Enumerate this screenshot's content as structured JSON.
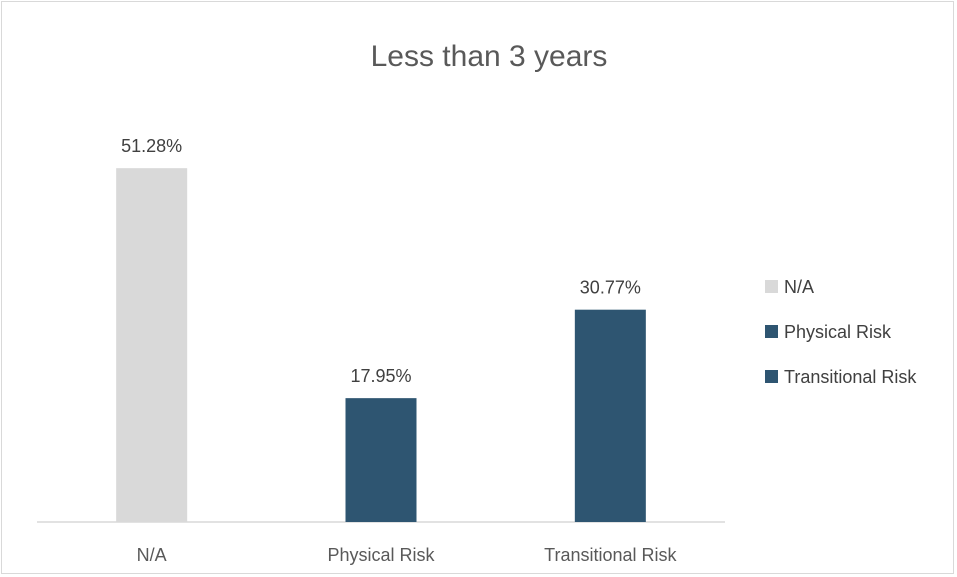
{
  "chart_data": {
    "type": "bar",
    "title": "Less than 3 years",
    "xlabel": "",
    "ylabel": "",
    "categories": [
      "N/A",
      "Physical Risk",
      "Transitional Risk"
    ],
    "values": [
      51.28,
      17.95,
      30.77
    ],
    "data_labels": [
      "51.28%",
      "17.95%",
      "30.77%"
    ],
    "colors": [
      "#d9d9d9",
      "#2e5571",
      "#2e5571"
    ],
    "ylim": [
      0,
      60
    ],
    "grid": false,
    "legend": {
      "position": "right",
      "entries": [
        {
          "label": "N/A",
          "color": "#d9d9d9"
        },
        {
          "label": "Physical Risk",
          "color": "#2e5571"
        },
        {
          "label": "Transitional Risk",
          "color": "#2e5571"
        }
      ]
    }
  }
}
